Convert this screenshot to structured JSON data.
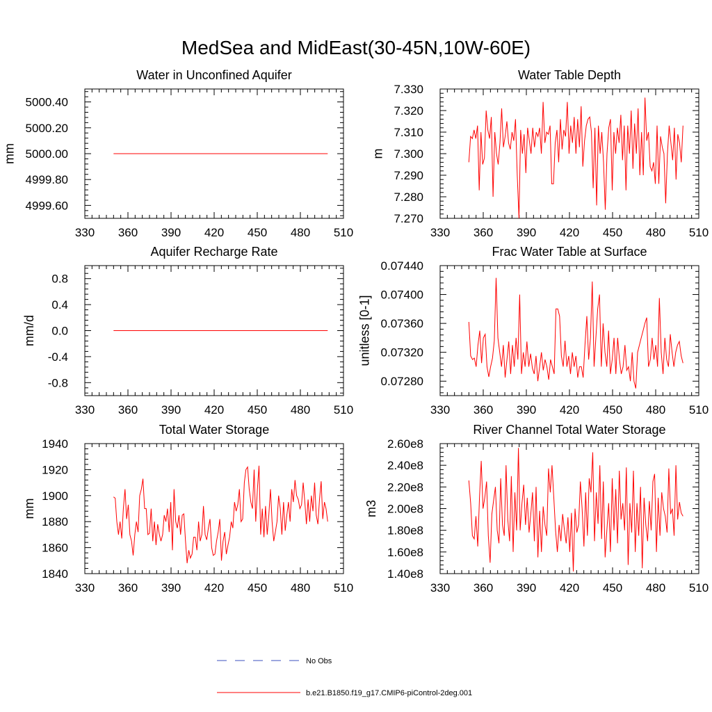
{
  "figure_title": "MedSea and MidEast(30-45N,10W-60E)",
  "colors": {
    "model": "#ff0000",
    "obs": "#3b4fbf",
    "axis": "#000000"
  },
  "legend": {
    "obs_label": "No Obs",
    "model_label": "b.e21.B1850.f19_g17.CMIP6-piControl-2deg.001"
  },
  "chart_data": [
    {
      "type": "line",
      "title": "Water in Unconfined Aquifer",
      "ylabel": "mm",
      "xlim": [
        330,
        510
      ],
      "ylim": [
        4999.5,
        5000.5
      ],
      "xticks": [
        330,
        360,
        390,
        420,
        450,
        480,
        510
      ],
      "yticks": [
        4999.6,
        4999.8,
        5000.0,
        5000.2,
        5000.4
      ],
      "ytick_labels": [
        "4999.60",
        "4999.80",
        "5000.00",
        "5000.20",
        "5000.40"
      ],
      "series": [
        {
          "name": "b.e21.B1850.f19_g17.CMIP6-piControl-2deg.001",
          "x_start": 350,
          "x_end": 499,
          "values": [
            5000.0,
            5000.0
          ]
        }
      ]
    },
    {
      "type": "line",
      "title": "Water Table Depth",
      "ylabel": "m",
      "xlim": [
        330,
        510
      ],
      "ylim": [
        7.27,
        7.33
      ],
      "xticks": [
        330,
        360,
        390,
        420,
        450,
        480,
        510
      ],
      "yticks": [
        7.27,
        7.28,
        7.29,
        7.3,
        7.31,
        7.32,
        7.33
      ],
      "ytick_labels": [
        "7.270",
        "7.280",
        "7.290",
        "7.300",
        "7.310",
        "7.320",
        "7.330"
      ],
      "series": [
        {
          "name": "b.e21.B1850.f19_g17.CMIP6-piControl-2deg.001",
          "x_start": 350,
          "x_end": 499,
          "values": [
            7.296,
            7.308,
            7.307,
            7.311,
            7.307,
            7.313,
            7.283,
            7.31,
            7.295,
            7.298,
            7.32,
            7.311,
            7.307,
            7.317,
            7.28,
            7.31,
            7.3,
            7.295,
            7.305,
            7.321,
            7.303,
            7.308,
            7.315,
            7.305,
            7.302,
            7.31,
            7.306,
            7.316,
            7.29,
            7.27,
            7.311,
            7.3,
            7.309,
            7.291,
            7.312,
            7.306,
            7.3,
            7.312,
            7.303,
            7.31,
            7.308,
            7.312,
            7.3,
            7.324,
            7.305,
            7.31,
            7.309,
            7.313,
            7.286,
            7.286,
            7.305,
            7.311,
            7.296,
            7.316,
            7.302,
            7.311,
            7.308,
            7.324,
            7.3,
            7.313,
            7.305,
            7.317,
            7.3,
            7.316,
            7.303,
            7.322,
            7.294,
            7.306,
            7.313,
            7.316,
            7.317,
            7.31,
            7.284,
            7.312,
            7.276,
            7.313,
            7.3,
            7.31,
            7.296,
            7.274,
            7.3,
            7.312,
            7.316,
            7.283,
            7.31,
            7.3,
            7.312,
            7.305,
            7.318,
            7.297,
            7.313,
            7.283,
            7.313,
            7.3,
            7.32,
            7.293,
            7.314,
            7.3,
            7.321,
            7.29,
            7.31,
            7.29,
            7.326,
            7.306,
            7.31,
            7.294,
            7.292,
            7.296,
            7.286,
            7.313,
            7.286,
            7.308,
            7.303,
            7.3,
            7.277,
            7.3,
            7.313,
            7.305,
            7.297,
            7.312,
            7.288,
            7.309,
            7.305,
            7.296,
            7.313
          ]
        }
      ]
    },
    {
      "type": "line",
      "title": "Aquifer Recharge Rate",
      "ylabel": "mm/d",
      "xlim": [
        330,
        510
      ],
      "ylim": [
        -1.0,
        1.0
      ],
      "xticks": [
        330,
        360,
        390,
        420,
        450,
        480,
        510
      ],
      "yticks": [
        -0.8,
        -0.4,
        0.0,
        0.4,
        0.8
      ],
      "ytick_labels": [
        "-0.8",
        "-0.4",
        "0.0",
        "0.4",
        "0.8"
      ],
      "series": [
        {
          "name": "b.e21.B1850.f19_g17.CMIP6-piControl-2deg.001",
          "x_start": 350,
          "x_end": 499,
          "values": [
            0.0,
            0.0
          ]
        }
      ]
    },
    {
      "type": "line",
      "title": "Frac Water Table at Surface",
      "ylabel": "unitless [0-1]",
      "xlim": [
        330,
        510
      ],
      "ylim": [
        0.0726,
        0.0744
      ],
      "xticks": [
        330,
        360,
        390,
        420,
        450,
        480,
        510
      ],
      "yticks": [
        0.0728,
        0.0732,
        0.0736,
        0.074,
        0.0744
      ],
      "ytick_labels": [
        "0.07280",
        "0.07320",
        "0.07360",
        "0.07400",
        "0.07440"
      ],
      "series": [
        {
          "name": "b.e21.B1850.f19_g17.CMIP6-piControl-2deg.001",
          "x_start": 350,
          "x_end": 499,
          "values": [
            0.07362,
            0.07315,
            0.0731,
            0.07312,
            0.073,
            0.0733,
            0.0735,
            0.07305,
            0.0734,
            0.07345,
            0.073,
            0.07286,
            0.073,
            0.07312,
            0.07336,
            0.07423,
            0.0734,
            0.0732,
            0.073,
            0.0733,
            0.07285,
            0.0731,
            0.07335,
            0.0729,
            0.0733,
            0.073,
            0.0734,
            0.0731,
            0.074,
            0.0729,
            0.0732,
            0.073,
            0.07335,
            0.073,
            0.07318,
            0.07298,
            0.0729,
            0.07315,
            0.0728,
            0.073,
            0.0732,
            0.07295,
            0.0731,
            0.073,
            0.07282,
            0.0731,
            0.073,
            0.0729,
            0.0738,
            0.0738,
            0.0737,
            0.07315,
            0.073,
            0.07336,
            0.073,
            0.07315,
            0.0729,
            0.0732,
            0.073,
            0.07315,
            0.07285,
            0.073,
            0.073,
            0.07285,
            0.0733,
            0.0737,
            0.0731,
            0.0734,
            0.07418,
            0.073,
            0.0734,
            0.0738,
            0.074,
            0.073,
            0.0736,
            0.0732,
            0.073,
            0.0735,
            0.0729,
            0.0731,
            0.0734,
            0.0729,
            0.0734,
            0.0731,
            0.0729,
            0.073,
            0.0733,
            0.07295,
            0.073,
            0.0728,
            0.0732,
            0.0728,
            0.0727,
            0.0732,
            0.0733,
            0.0734,
            0.0735,
            0.0736,
            0.07368,
            0.073,
            0.0731,
            0.0734,
            0.0731,
            0.0733,
            0.073,
            0.07395,
            0.0732,
            0.0729,
            0.0734,
            0.0731,
            0.073,
            0.07345,
            0.0732,
            0.073,
            0.0732,
            0.0733,
            0.07335,
            0.07315,
            0.07305
          ]
        }
      ]
    },
    {
      "type": "line",
      "title": "Total Water Storage",
      "ylabel": "mm",
      "xlim": [
        330,
        510
      ],
      "ylim": [
        1840,
        1940
      ],
      "xticks": [
        330,
        360,
        390,
        420,
        450,
        480,
        510
      ],
      "yticks": [
        1840,
        1860,
        1880,
        1900,
        1920,
        1940
      ],
      "ytick_labels": [
        "1840",
        "1860",
        "1880",
        "1900",
        "1920",
        "1940"
      ],
      "series": [
        {
          "name": "b.e21.B1850.f19_g17.CMIP6-piControl-2deg.001",
          "x_start": 350,
          "x_end": 499,
          "values": [
            1899,
            1898,
            1880,
            1870,
            1880,
            1867,
            1890,
            1905,
            1882,
            1893,
            1870,
            1865,
            1854,
            1870,
            1880,
            1872,
            1900,
            1905,
            1913,
            1890,
            1890,
            1870,
            1871,
            1890,
            1865,
            1880,
            1862,
            1878,
            1870,
            1865,
            1870,
            1885,
            1880,
            1890,
            1872,
            1895,
            1858,
            1905,
            1880,
            1875,
            1885,
            1870,
            1885,
            1886,
            1865,
            1848,
            1858,
            1852,
            1855,
            1868,
            1868,
            1858,
            1880,
            1865,
            1870,
            1892,
            1870,
            1866,
            1875,
            1882,
            1860,
            1854,
            1855,
            1865,
            1872,
            1882,
            1850,
            1865,
            1872,
            1855,
            1862,
            1868,
            1880,
            1875,
            1895,
            1888,
            1893,
            1905,
            1880,
            1882,
            1910,
            1920,
            1922,
            1905,
            1895,
            1890,
            1920,
            1880,
            1905,
            1923,
            1870,
            1890,
            1868,
            1892,
            1870,
            1885,
            1905,
            1880,
            1865,
            1872,
            1880,
            1900,
            1890,
            1870,
            1895,
            1873,
            1885,
            1895,
            1880,
            1905,
            1895,
            1912,
            1900,
            1897,
            1890,
            1893,
            1910,
            1895,
            1878,
            1897,
            1880,
            1900,
            1888,
            1910,
            1885,
            1878,
            1897,
            1911,
            1882,
            1895,
            1890,
            1880
          ]
        }
      ]
    },
    {
      "type": "line",
      "title": "River Channel Total Water Storage",
      "ylabel": "m3",
      "xlim": [
        330,
        510
      ],
      "ylim": [
        140000000,
        260000000
      ],
      "xticks": [
        330,
        360,
        390,
        420,
        450,
        480,
        510
      ],
      "yticks": [
        140000000,
        160000000,
        180000000,
        200000000,
        220000000,
        240000000,
        260000000
      ],
      "ytick_labels": [
        "1.40e8",
        "1.60e8",
        "1.80e8",
        "2.00e8",
        "2.20e8",
        "2.40e8",
        "2.60e8"
      ],
      "series": [
        {
          "name": "b.e21.B1850.f19_g17.CMIP6-piControl-2deg.001",
          "x_start": 350,
          "x_end": 499,
          "values": [
            226000000,
            205000000,
            175000000,
            172000000,
            193000000,
            165000000,
            210000000,
            244000000,
            200000000,
            210000000,
            225000000,
            175000000,
            150000000,
            195000000,
            208000000,
            220000000,
            180000000,
            168000000,
            228000000,
            185000000,
            175000000,
            240000000,
            190000000,
            170000000,
            230000000,
            160000000,
            215000000,
            180000000,
            256000000,
            180000000,
            205000000,
            222000000,
            185000000,
            210000000,
            178000000,
            195000000,
            215000000,
            170000000,
            220000000,
            155000000,
            198000000,
            160000000,
            202000000,
            185000000,
            175000000,
            237000000,
            215000000,
            240000000,
            210000000,
            180000000,
            160000000,
            185000000,
            170000000,
            195000000,
            180000000,
            168000000,
            192000000,
            160000000,
            196000000,
            142000000,
            200000000,
            178000000,
            185000000,
            225000000,
            200000000,
            165000000,
            215000000,
            175000000,
            228000000,
            215000000,
            252000000,
            170000000,
            215000000,
            186000000,
            240000000,
            172000000,
            225000000,
            155000000,
            180000000,
            205000000,
            160000000,
            228000000,
            180000000,
            218000000,
            168000000,
            235000000,
            190000000,
            205000000,
            180000000,
            238000000,
            148000000,
            205000000,
            178000000,
            235000000,
            160000000,
            205000000,
            175000000,
            220000000,
            145000000,
            210000000,
            185000000,
            170000000,
            207000000,
            180000000,
            225000000,
            232000000,
            160000000,
            210000000,
            175000000,
            215000000,
            200000000,
            193000000,
            178000000,
            237000000,
            195000000,
            200000000,
            175000000,
            240000000,
            190000000,
            206000000,
            196000000,
            193000000
          ]
        }
      ]
    }
  ]
}
